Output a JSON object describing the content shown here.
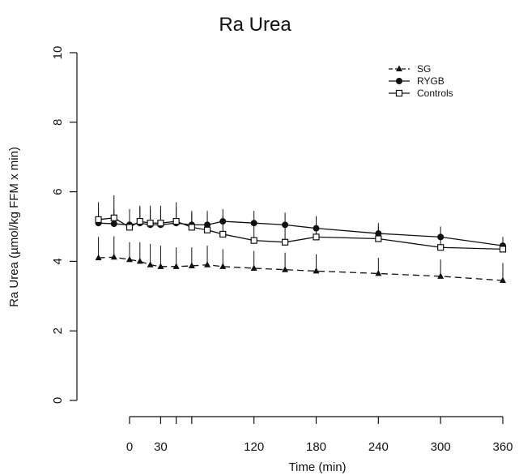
{
  "chart_data": {
    "type": "line",
    "title": "Ra Urea",
    "xlabel": "Time (min)",
    "ylabel": "Ra Urea (µmol/kg FFM x min)",
    "xlim": [
      -40,
      360
    ],
    "ylim": [
      0,
      10
    ],
    "x_ticks": [
      0,
      30,
      120,
      180,
      240,
      300,
      360
    ],
    "x_tick_marks": [
      0,
      30,
      45,
      60,
      120,
      180,
      240,
      300,
      360
    ],
    "y_ticks": [
      0,
      2,
      4,
      6,
      8,
      10
    ],
    "legend_position": "top-right",
    "series": [
      {
        "name": "SG",
        "marker": "triangle",
        "line_style": "dashed",
        "x": [
          -30,
          -15,
          0,
          10,
          20,
          30,
          45,
          60,
          75,
          90,
          120,
          150,
          180,
          240,
          300,
          360
        ],
        "y": [
          4.1,
          4.12,
          4.05,
          4.0,
          3.9,
          3.85,
          3.85,
          3.87,
          3.9,
          3.85,
          3.8,
          3.76,
          3.72,
          3.65,
          3.57,
          3.45
        ],
        "error_upper": [
          4.7,
          4.72,
          4.55,
          4.55,
          4.5,
          4.45,
          4.4,
          4.4,
          4.45,
          4.35,
          4.3,
          4.25,
          4.2,
          4.1,
          4.05,
          3.95
        ]
      },
      {
        "name": "RYGB",
        "marker": "circle",
        "line_style": "solid",
        "x": [
          -30,
          -15,
          0,
          10,
          20,
          30,
          45,
          60,
          75,
          90,
          120,
          150,
          180,
          240,
          300,
          360
        ],
        "y": [
          5.1,
          5.08,
          5.05,
          5.1,
          5.05,
          5.05,
          5.1,
          5.05,
          5.05,
          5.15,
          5.1,
          5.05,
          4.95,
          4.8,
          4.7,
          4.45
        ],
        "error_upper": [
          5.55,
          5.5,
          5.45,
          5.55,
          5.5,
          5.5,
          5.55,
          5.45,
          5.45,
          5.5,
          5.45,
          5.4,
          5.3,
          5.1,
          5.0,
          4.7
        ]
      },
      {
        "name": "Controls",
        "marker": "square",
        "line_style": "solid",
        "x": [
          -30,
          -15,
          0,
          10,
          20,
          30,
          45,
          60,
          75,
          90,
          120,
          150,
          180,
          240,
          300,
          360
        ],
        "y": [
          5.2,
          5.25,
          4.98,
          5.15,
          5.1,
          5.1,
          5.15,
          4.98,
          4.9,
          4.78,
          4.6,
          4.55,
          4.7,
          4.65,
          4.4,
          4.35
        ],
        "error_upper": [
          5.7,
          5.9,
          5.5,
          5.6,
          5.6,
          5.6,
          5.7,
          5.4,
          5.3,
          5.3,
          5.1,
          5.0,
          5.1,
          5.0,
          4.8,
          4.7
        ]
      }
    ]
  }
}
